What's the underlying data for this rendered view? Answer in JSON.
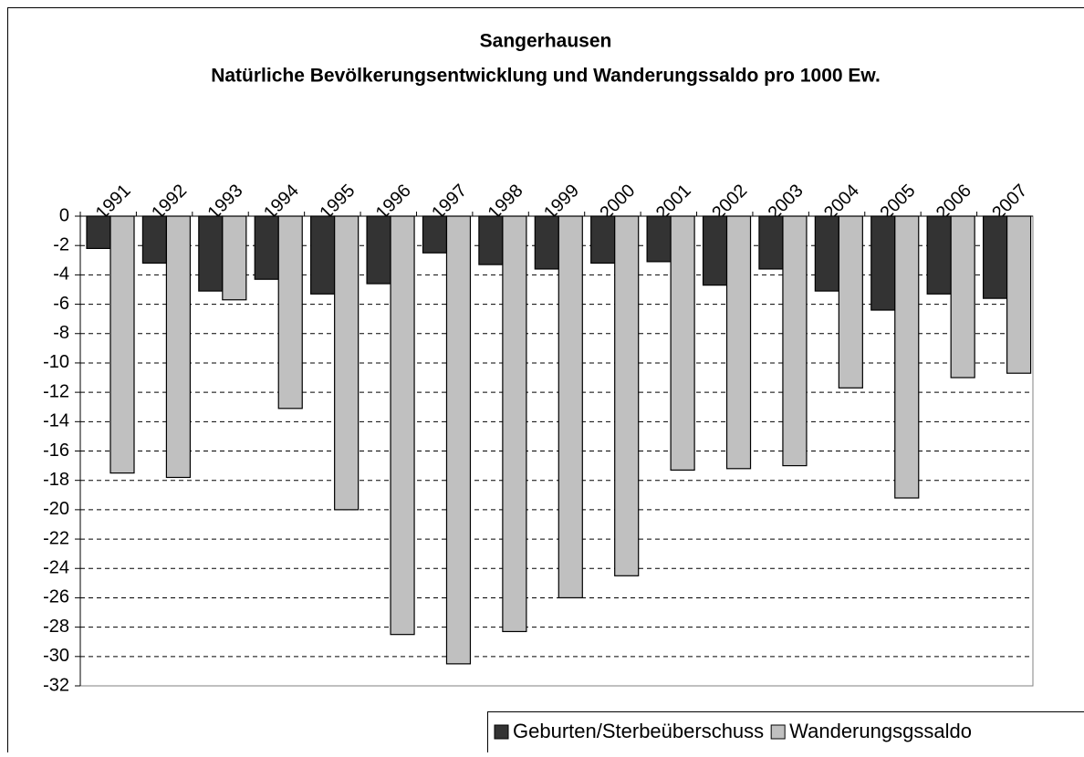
{
  "chart_data": {
    "type": "bar",
    "title": "Sangerhausen",
    "subtitle": "Natürliche Bevölkerungsentwicklung und Wanderungssaldo pro 1000 Ew.",
    "categories": [
      "1991",
      "1992",
      "1993",
      "1994",
      "1995",
      "1996",
      "1997",
      "1998",
      "1999",
      "2000",
      "2001",
      "2002",
      "2003",
      "2004",
      "2005",
      "2006",
      "2007"
    ],
    "series": [
      {
        "name": "Geburten/Sterbeüberschuss",
        "color": "#333333",
        "values": [
          -2.2,
          -3.2,
          -5.1,
          -4.3,
          -5.3,
          -4.6,
          -2.5,
          -3.3,
          -3.6,
          -3.2,
          -3.1,
          -4.7,
          -3.6,
          -5.1,
          -6.4,
          -5.3,
          -5.6
        ]
      },
      {
        "name": "Wanderungsgssaldo",
        "color": "#c0c0c0",
        "values": [
          -17.5,
          -17.8,
          -5.7,
          -13.1,
          -20.0,
          -28.5,
          -30.5,
          -28.3,
          -26.0,
          -24.5,
          -17.3,
          -17.2,
          -17.0,
          -11.7,
          -19.2,
          -11.0,
          -10.7
        ]
      }
    ],
    "ylim": [
      -32,
      0
    ],
    "yticks": [
      0,
      -2,
      -4,
      -6,
      -8,
      -10,
      -12,
      -14,
      -16,
      -18,
      -20,
      -22,
      -24,
      -26,
      -28,
      -30,
      -32
    ],
    "grid": true,
    "legend": "bottom-right"
  }
}
